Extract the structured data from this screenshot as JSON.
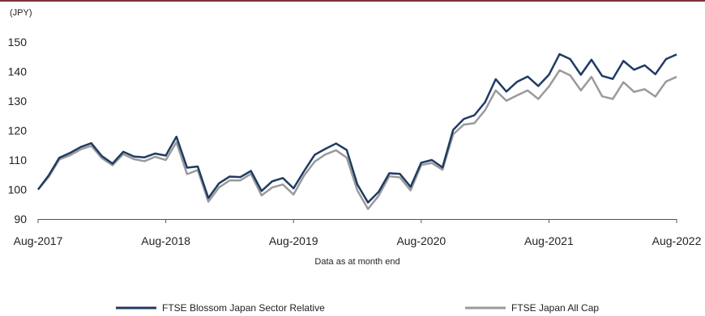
{
  "chart_data": {
    "type": "line",
    "y_unit": "(JPY)",
    "footnote": "Data as at month end",
    "ylim": [
      90,
      150
    ],
    "y_ticks": [
      90,
      100,
      110,
      120,
      130,
      140,
      150
    ],
    "x_tick_labels": [
      "Aug-2017",
      "Aug-2018",
      "Aug-2019",
      "Aug-2020",
      "Aug-2021",
      "Aug-2022"
    ],
    "x_tick_indices": [
      0,
      12,
      24,
      36,
      48,
      60
    ],
    "x": [
      "Aug-2017",
      "Sep-2017",
      "Oct-2017",
      "Nov-2017",
      "Dec-2017",
      "Jan-2018",
      "Feb-2018",
      "Mar-2018",
      "Apr-2018",
      "May-2018",
      "Jun-2018",
      "Jul-2018",
      "Aug-2018",
      "Sep-2018",
      "Oct-2018",
      "Nov-2018",
      "Dec-2018",
      "Jan-2019",
      "Feb-2019",
      "Mar-2019",
      "Apr-2019",
      "May-2019",
      "Jun-2019",
      "Jul-2019",
      "Aug-2019",
      "Sep-2019",
      "Oct-2019",
      "Nov-2019",
      "Dec-2019",
      "Jan-2020",
      "Feb-2020",
      "Mar-2020",
      "Apr-2020",
      "May-2020",
      "Jun-2020",
      "Jul-2020",
      "Aug-2020",
      "Sep-2020",
      "Oct-2020",
      "Nov-2020",
      "Dec-2020",
      "Jan-2021",
      "Feb-2021",
      "Mar-2021",
      "Apr-2021",
      "May-2021",
      "Jun-2021",
      "Jul-2021",
      "Aug-2021",
      "Sep-2021",
      "Oct-2021",
      "Nov-2021",
      "Dec-2021",
      "Jan-2022",
      "Feb-2022",
      "Mar-2022",
      "Apr-2022",
      "May-2022",
      "Jun-2022",
      "Jul-2022",
      "Aug-2022"
    ],
    "grid": false,
    "legend_position": "bottom",
    "series": [
      {
        "name": "FTSE Blossom Japan Sector Relative",
        "color": "#1f3b63",
        "values": [
          100.0,
          104.8,
          110.8,
          112.4,
          114.4,
          115.7,
          111.3,
          108.8,
          112.8,
          111.2,
          110.9,
          112.2,
          111.5,
          117.9,
          107.4,
          107.8,
          97.1,
          102.1,
          104.4,
          104.2,
          106.3,
          99.5,
          102.8,
          103.9,
          100.4,
          106.3,
          111.8,
          113.8,
          115.6,
          113.4,
          101.7,
          95.6,
          99.2,
          105.5,
          105.3,
          100.9,
          109.1,
          110.0,
          107.5,
          120.2,
          123.9,
          125.2,
          129.6,
          137.4,
          133.2,
          136.5,
          138.3,
          135.1,
          138.9,
          145.9,
          144.2,
          138.9,
          144.0,
          138.5,
          137.5,
          143.6,
          140.6,
          142.1,
          139.1,
          144.2,
          145.8
        ]
      },
      {
        "name": "FTSE Japan All Cap",
        "color": "#9a9a9a",
        "values": [
          100.0,
          104.3,
          110.2,
          111.6,
          113.6,
          114.8,
          110.6,
          108.2,
          112.0,
          110.3,
          109.6,
          111.1,
          110.0,
          116.0,
          105.2,
          106.6,
          95.9,
          100.7,
          103.1,
          103.1,
          105.3,
          98.0,
          100.7,
          101.7,
          98.3,
          104.8,
          109.5,
          111.9,
          113.3,
          110.8,
          99.7,
          93.4,
          97.9,
          104.5,
          104.1,
          99.7,
          108.3,
          109.0,
          106.7,
          118.7,
          122.0,
          122.5,
          126.9,
          133.6,
          130.1,
          131.9,
          133.6,
          130.7,
          134.9,
          140.4,
          138.7,
          133.6,
          138.2,
          131.6,
          130.7,
          136.4,
          133.1,
          134.0,
          131.5,
          136.6,
          138.2
        ]
      }
    ]
  }
}
